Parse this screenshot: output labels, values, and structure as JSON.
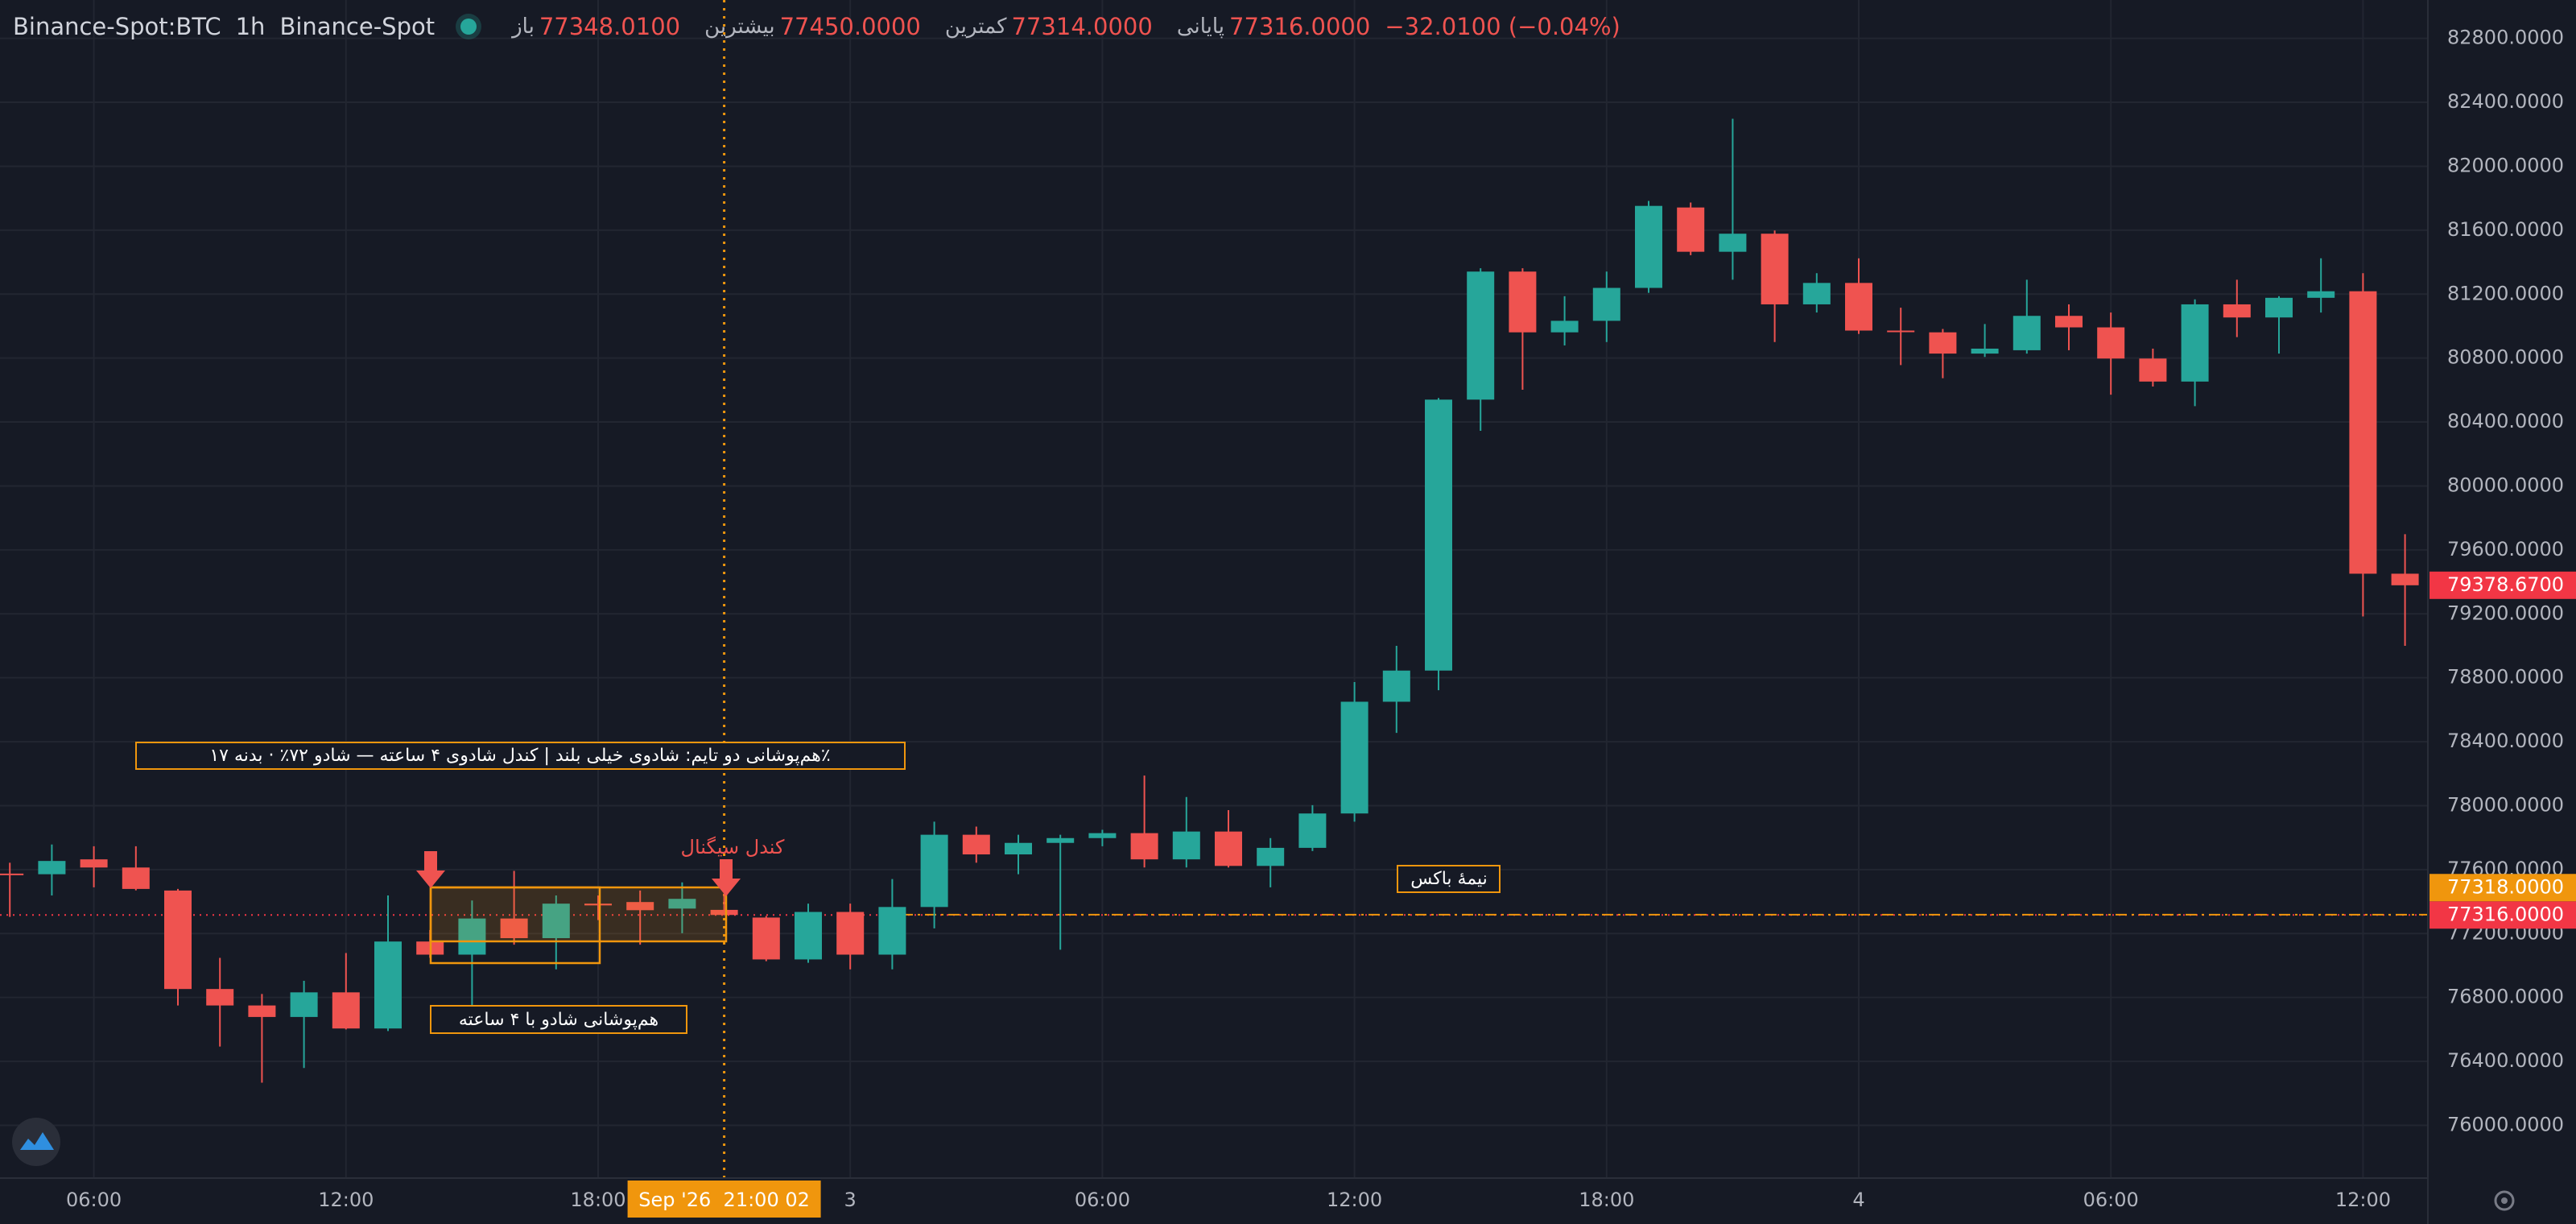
{
  "chart_data": {
    "type": "candlestick",
    "symbol": "Binance-Spot:BTC",
    "interval": "1h",
    "exchange": "Binance-Spot",
    "legend": [
      {
        "label": "باز",
        "value": "77348.0100"
      },
      {
        "label": "بیشترین",
        "value": "77450.0000"
      },
      {
        "label": "کمترین",
        "value": "77314.0000"
      },
      {
        "label": "پایانی",
        "value": "77316.0000"
      }
    ],
    "change": "−32.0100 (−0.04%)",
    "up_color": "#26a69a",
    "down_color": "#ef5350",
    "x": [
      "2026-09-02 04:00",
      "2026-09-02 05:00",
      "2026-09-02 06:00",
      "2026-09-02 07:00",
      "2026-09-02 08:00",
      "2026-09-02 09:00",
      "2026-09-02 10:00",
      "2026-09-02 11:00",
      "2026-09-02 12:00",
      "2026-09-02 13:00",
      "2026-09-02 14:00",
      "2026-09-02 15:00",
      "2026-09-02 16:00",
      "2026-09-02 17:00",
      "2026-09-02 18:00",
      "2026-09-02 19:00",
      "2026-09-02 20:00",
      "2026-09-02 21:00",
      "2026-09-02 22:00",
      "2026-09-02 23:00",
      "2026-09-03 00:00",
      "2026-09-03 01:00",
      "2026-09-03 02:00",
      "2026-09-03 03:00",
      "2026-09-03 04:00",
      "2026-09-03 05:00",
      "2026-09-03 06:00",
      "2026-09-03 07:00",
      "2026-09-03 08:00",
      "2026-09-03 09:00",
      "2026-09-03 10:00",
      "2026-09-03 11:00",
      "2026-09-03 12:00",
      "2026-09-03 13:00",
      "2026-09-03 14:00",
      "2026-09-03 15:00",
      "2026-09-03 16:00",
      "2026-09-03 17:00",
      "2026-09-03 18:00",
      "2026-09-03 19:00",
      "2026-09-03 20:00",
      "2026-09-03 21:00",
      "2026-09-03 22:00",
      "2026-09-03 23:00",
      "2026-09-04 00:00",
      "2026-09-04 01:00",
      "2026-09-04 02:00",
      "2026-09-04 03:00",
      "2026-09-04 04:00",
      "2026-09-04 05:00",
      "2026-09-04 06:00",
      "2026-09-04 07:00",
      "2026-09-04 08:00",
      "2026-09-04 09:00",
      "2026-09-04 10:00",
      "2026-09-04 11:00",
      "2026-09-04 12:00",
      "2026-09-04 13:00"
    ],
    "open": [
      77575,
      77571,
      77664,
      77613,
      77469,
      76853,
      76750,
      76678,
      76832,
      76606,
      77150,
      77068,
      77294,
      77171,
      77387,
      77397,
      77356,
      77348.01,
      77300,
      77038,
      77335,
      77068,
      77366,
      77818,
      77695,
      77767,
      77797,
      77828,
      77664,
      77838,
      77623,
      77736,
      77951,
      78650,
      78845,
      80540,
      81341,
      80961,
      81033,
      81239,
      81742,
      81465,
      81578,
      81136,
      81270,
      80972,
      80961,
      80828,
      80849,
      81064,
      80992,
      80797,
      80653,
      81136,
      81054,
      81177,
      81218,
      79451
    ],
    "high": [
      77643,
      77757,
      77746,
      77746,
      77479,
      77048,
      76822,
      76904,
      77078,
      77438,
      77222,
      77407,
      77592,
      77438,
      77438,
      77469,
      77520,
      77450,
      77310,
      77387,
      77387,
      77541,
      77900,
      77869,
      77818,
      77818,
      77849,
      78188,
      78054,
      77972,
      77797,
      78003,
      78773,
      79000,
      80550,
      81362,
      81362,
      81187,
      81341,
      81783,
      81773,
      82297,
      81598,
      81331,
      81424,
      81115,
      80982,
      81013,
      81290,
      81136,
      81085,
      80859,
      81167,
      81290,
      81187,
      81424,
      81331,
      79698
    ],
    "low": [
      77304,
      77438,
      77489,
      77470,
      76750,
      76493,
      76267,
      76359,
      76600,
      76590,
      77048,
      76750,
      77130,
      76976,
      77284,
      77130,
      77202,
      77314,
      77027,
      77017,
      76976,
      76976,
      77232,
      77643,
      77571,
      77099,
      77746,
      77613,
      77613,
      77613,
      77489,
      77716,
      77900,
      78455,
      78722,
      80345,
      80602,
      80879,
      80900,
      81208,
      81444,
      81290,
      80900,
      81085,
      80951,
      80756,
      80674,
      80807,
      80828,
      80849,
      80571,
      80622,
      80499,
      80931,
      80828,
      81085,
      79184,
      79000
    ],
    "close": [
      77568,
      77654,
      77613,
      77479,
      76853,
      76750,
      76678,
      76832,
      76606,
      77150,
      77068,
      77294,
      77171,
      77387,
      77376,
      77346,
      77417,
      77316,
      77038,
      77335,
      77068,
      77366,
      77818,
      77695,
      77767,
      77797,
      77828,
      77664,
      77838,
      77623,
      77736,
      77951,
      78650,
      78845,
      80540,
      81341,
      80961,
      81033,
      81239,
      81752,
      81465,
      81578,
      81136,
      81270,
      80972,
      80962,
      80828,
      80859,
      81064,
      80992,
      80797,
      80653,
      81136,
      81054,
      81177,
      81218,
      79451,
      79378.67
    ],
    "ylim": [
      75670,
      83040
    ],
    "yticks": [
      {
        "value": 76000,
        "label": "76000.0000"
      },
      {
        "value": 76400,
        "label": "76400.0000"
      },
      {
        "value": 76800,
        "label": "76800.0000"
      },
      {
        "value": 77200,
        "label": "77200.0000"
      },
      {
        "value": 77600,
        "label": "77600.0000"
      },
      {
        "value": 78000,
        "label": "78000.0000"
      },
      {
        "value": 78400,
        "label": "78400.0000"
      },
      {
        "value": 78800,
        "label": "78800.0000"
      },
      {
        "value": 79200,
        "label": "79200.0000"
      },
      {
        "value": 79600,
        "label": "79600.0000"
      },
      {
        "value": 80000,
        "label": "80000.0000"
      },
      {
        "value": 80400,
        "label": "80400.0000"
      },
      {
        "value": 80800,
        "label": "80800.0000"
      },
      {
        "value": 81200,
        "label": "81200.0000"
      },
      {
        "value": 81600,
        "label": "81600.0000"
      },
      {
        "value": 82000,
        "label": "82000.0000"
      },
      {
        "value": 82400,
        "label": "82400.0000"
      },
      {
        "value": 82800,
        "label": "82800.0000"
      }
    ],
    "xticks": [
      {
        "value": "2026-09-02 06:00",
        "label": "06:00"
      },
      {
        "value": "2026-09-02 12:00",
        "label": "12:00"
      },
      {
        "value": "2026-09-02 18:00",
        "label": "18:00"
      },
      {
        "value": "2026-09-03 00:00",
        "label": "3"
      },
      {
        "value": "2026-09-03 06:00",
        "label": "06:00"
      },
      {
        "value": "2026-09-03 12:00",
        "label": "12:00"
      },
      {
        "value": "2026-09-03 18:00",
        "label": "18:00"
      },
      {
        "value": "2026-09-04 00:00",
        "label": "4"
      },
      {
        "value": "2026-09-04 06:00",
        "label": "06:00"
      },
      {
        "value": "2026-09-04 12:00",
        "label": "12:00"
      }
    ],
    "grid": true,
    "crosshair": {
      "x": "2026-09-02 21:00",
      "label": "Sep '26  21:00 02"
    },
    "price_tags": [
      {
        "value": 77316,
        "label": "77316.0000",
        "color": "#f23645"
      },
      {
        "value": 77318,
        "label": "77318.0000",
        "color": "#f0960d"
      },
      {
        "value": 79378.67,
        "label": "79378.6700",
        "color": "#f23645"
      }
    ],
    "annotations": [
      "هم‌پوشانی دو تایم: شادوی خیلی بلند | کندل شادوی ۴ ساعته — شادو ۷۲٪ · بدنه ۱۷٪",
      "کندل سیگنال",
      "هم‌پوشانی شادو با ۴ ساعته",
      "نیمهٔ باکس"
    ]
  }
}
